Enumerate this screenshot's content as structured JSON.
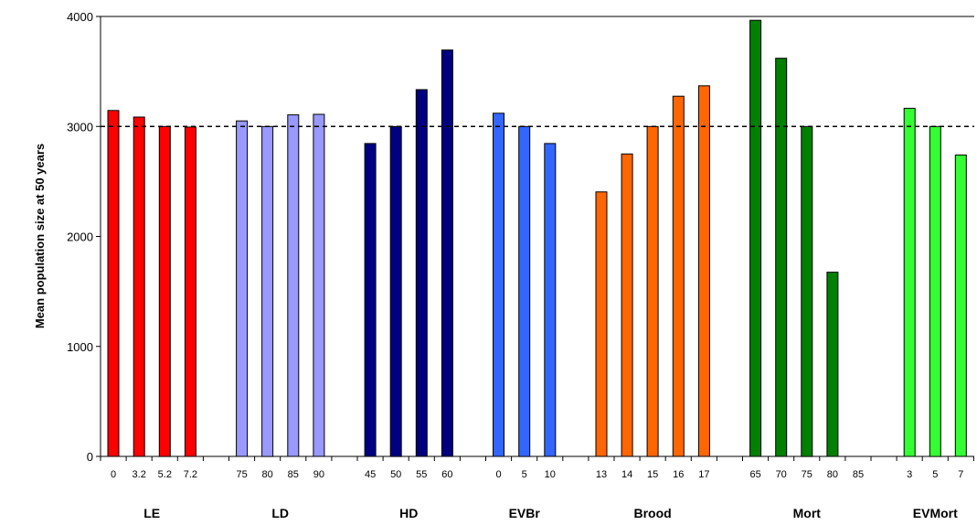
{
  "chart_data": {
    "type": "bar",
    "ylabel": "Mean population size at 50 years",
    "ylim": [
      0,
      4000
    ],
    "yticks": [
      0,
      1000,
      2000,
      3000,
      4000
    ],
    "grid": false,
    "reference_line": {
      "value": 3000,
      "style": "dashed"
    },
    "groups": [
      {
        "name": "LE",
        "color": "#FF0000",
        "categories": [
          "0",
          "3.2",
          "5.2",
          "7.2"
        ],
        "values": [
          3145,
          3085,
          3000,
          2995
        ]
      },
      {
        "name": "LD",
        "color": "#9999FF",
        "categories": [
          "75",
          "80",
          "85",
          "90"
        ],
        "values": [
          3050,
          3000,
          3105,
          3110
        ]
      },
      {
        "name": "HD",
        "color": "#000080",
        "categories": [
          "45",
          "50",
          "55",
          "60"
        ],
        "values": [
          2845,
          3000,
          3335,
          3695
        ]
      },
      {
        "name": "EVBr",
        "color": "#3366FF",
        "categories": [
          "0",
          "5",
          "10"
        ],
        "values": [
          3120,
          3000,
          2845
        ]
      },
      {
        "name": "Brood",
        "color": "#FF6600",
        "categories": [
          "13",
          "14",
          "15",
          "16",
          "17"
        ],
        "values": [
          2405,
          2750,
          3000,
          3275,
          3370
        ]
      },
      {
        "name": "Mort",
        "color": "#008000",
        "categories": [
          "65",
          "70",
          "75",
          "80",
          "85"
        ],
        "values": [
          3965,
          3620,
          3000,
          1675,
          0
        ]
      },
      {
        "name": "EVMort",
        "color": "#33FF33",
        "categories": [
          "3",
          "5",
          "7"
        ],
        "values": [
          3165,
          3000,
          2740
        ]
      }
    ]
  }
}
